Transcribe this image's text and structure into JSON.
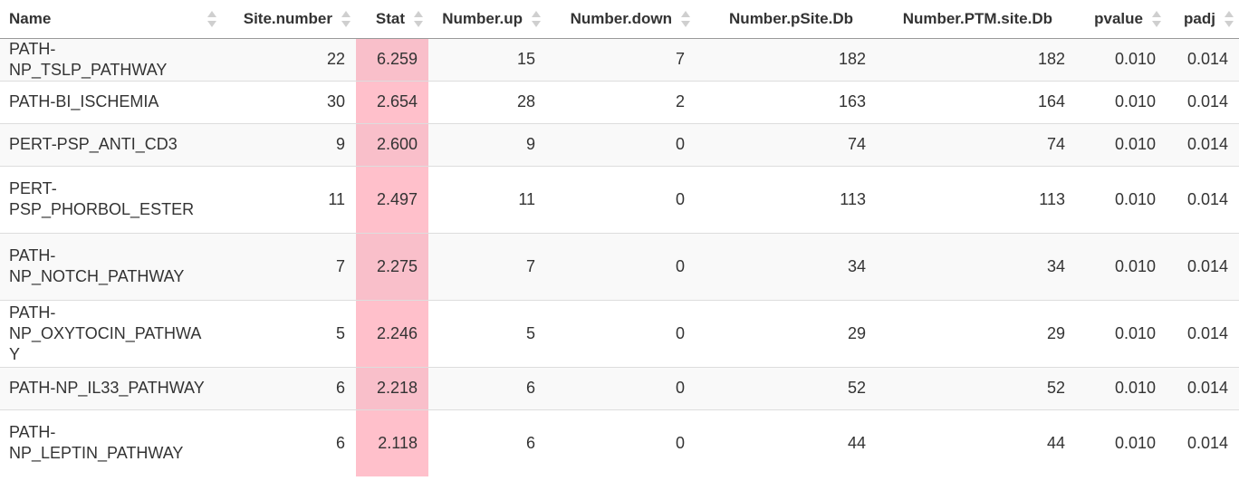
{
  "table": {
    "columns": [
      {
        "label": "Name",
        "align": "left"
      },
      {
        "label": "Site.number",
        "align": "right"
      },
      {
        "label": "Stat",
        "align": "right"
      },
      {
        "label": "Number.up",
        "align": "right"
      },
      {
        "label": "Number.down",
        "align": "right"
      },
      {
        "label": "Number.pSite.Db",
        "align": "right"
      },
      {
        "label": "Number.PTM.site.Db",
        "align": "right"
      },
      {
        "label": "pvalue",
        "align": "right"
      },
      {
        "label": "padj",
        "align": "right"
      }
    ],
    "rows": [
      {
        "name_lines": [
          "PATH-NP_TSLP_PATHWAY"
        ],
        "site_number": "22",
        "stat": "6.259",
        "number_up": "15",
        "number_down": "7",
        "number_psite_db": "182",
        "number_ptm_site_db": "182",
        "pvalue": "0.010",
        "padj": "0.014"
      },
      {
        "name_lines": [
          "PATH-BI_ISCHEMIA"
        ],
        "site_number": "30",
        "stat": "2.654",
        "number_up": "28",
        "number_down": "2",
        "number_psite_db": "163",
        "number_ptm_site_db": "164",
        "pvalue": "0.010",
        "padj": "0.014"
      },
      {
        "name_lines": [
          "PERT-PSP_ANTI_CD3"
        ],
        "site_number": "9",
        "stat": "2.600",
        "number_up": "9",
        "number_down": "0",
        "number_psite_db": "74",
        "number_ptm_site_db": "74",
        "pvalue": "0.010",
        "padj": "0.014"
      },
      {
        "name_lines": [
          "PERT-",
          "PSP_PHORBOL_ESTER"
        ],
        "site_number": "11",
        "stat": "2.497",
        "number_up": "11",
        "number_down": "0",
        "number_psite_db": "113",
        "number_ptm_site_db": "113",
        "pvalue": "0.010",
        "padj": "0.014"
      },
      {
        "name_lines": [
          "PATH-",
          "NP_NOTCH_PATHWAY"
        ],
        "site_number": "7",
        "stat": "2.275",
        "number_up": "7",
        "number_down": "0",
        "number_psite_db": "34",
        "number_ptm_site_db": "34",
        "pvalue": "0.010",
        "padj": "0.014"
      },
      {
        "name_lines": [
          "PATH-",
          "NP_OXYTOCIN_PATHWAY"
        ],
        "site_number": "5",
        "stat": "2.246",
        "number_up": "5",
        "number_down": "0",
        "number_psite_db": "29",
        "number_ptm_site_db": "29",
        "pvalue": "0.010",
        "padj": "0.014"
      },
      {
        "name_lines": [
          "PATH-NP_IL33_PATHWAY"
        ],
        "site_number": "6",
        "stat": "2.218",
        "number_up": "6",
        "number_down": "0",
        "number_psite_db": "52",
        "number_ptm_site_db": "52",
        "pvalue": "0.010",
        "padj": "0.014"
      },
      {
        "name_lines": [
          "PATH-",
          "NP_LEPTIN_PATHWAY"
        ],
        "site_number": "6",
        "stat": "2.118",
        "number_up": "6",
        "number_down": "0",
        "number_psite_db": "44",
        "number_ptm_site_db": "44",
        "pvalue": "0.010",
        "padj": "0.014"
      }
    ]
  },
  "colors": {
    "stat_highlight": "#ffc0cb",
    "row_stripe": "#f9f9f9",
    "border": "#dddddd"
  }
}
